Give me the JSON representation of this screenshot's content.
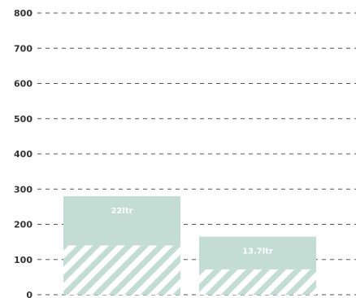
{
  "chart_data": {
    "type": "bar",
    "stacked": true,
    "title": "",
    "xlabel": "",
    "ylabel": "",
    "ylim": [
      0,
      800
    ],
    "yticks": [
      "800",
      "700",
      "600",
      "500",
      "400",
      "300",
      "200",
      "100",
      "0"
    ],
    "grid": true,
    "legend": "none",
    "categories": [
      "",
      ""
    ],
    "series": [
      {
        "values": [
          140,
          72
        ],
        "pattern": "diagonal-stripes"
      },
      {
        "values": [
          140,
          93
        ],
        "pattern": "solid"
      }
    ],
    "bar_labels": [
      "22ltr",
      "13.7ltr"
    ],
    "colors": {
      "bar_fill": "#c3ddd4",
      "stripe_fill": "#c3ddd4",
      "stripe_background": "#ffffff",
      "grid": "#555555",
      "tick_text": "#333333",
      "label_text": "#ffffff"
    }
  }
}
